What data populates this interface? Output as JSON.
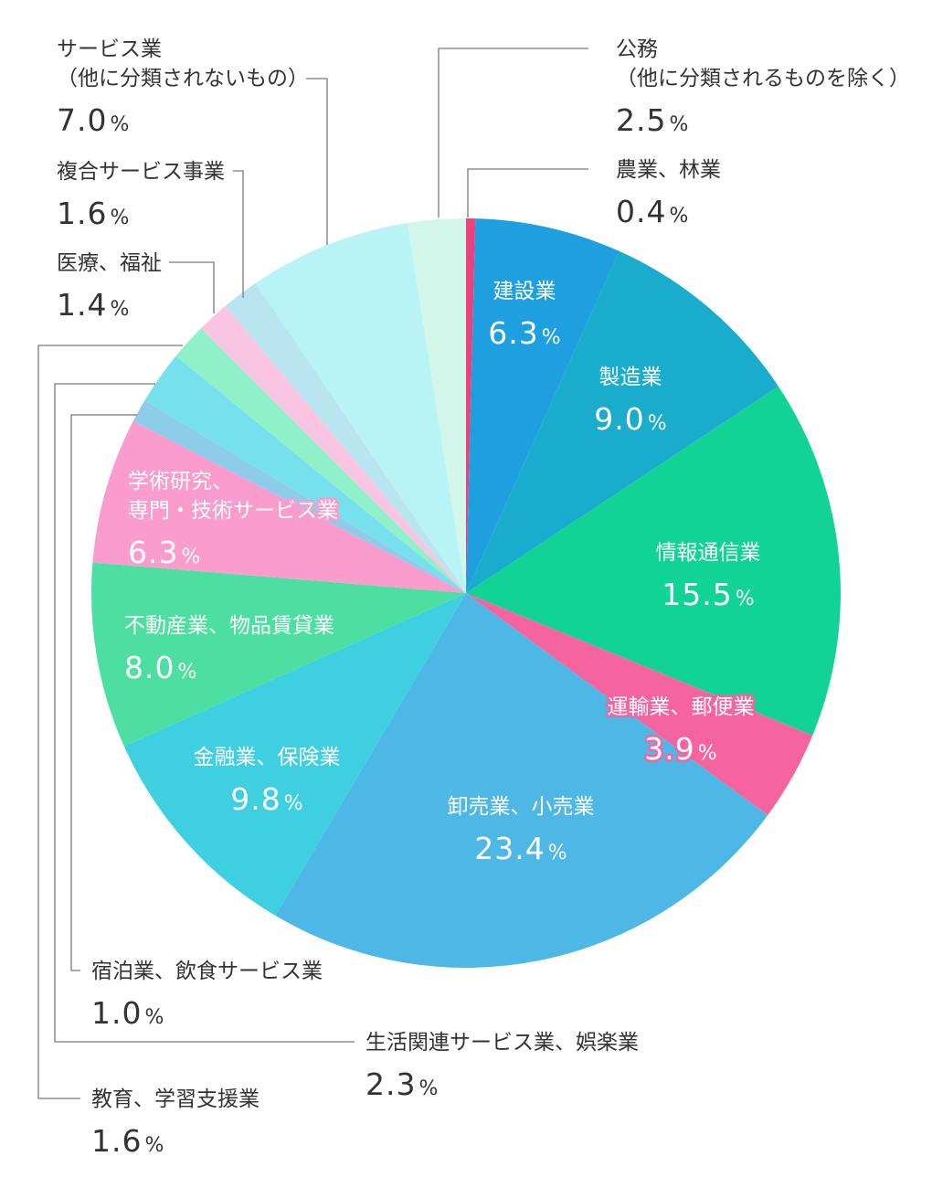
{
  "chart_data": {
    "type": "pie",
    "unit": "%",
    "slices": [
      {
        "name": "農業、林業",
        "value": 0.4,
        "color": "#e8437e"
      },
      {
        "name": "建設業",
        "value": 6.3,
        "color": "#1d9fe0"
      },
      {
        "name": "製造業",
        "value": 9.0,
        "color": "#1aaccc"
      },
      {
        "name": "情報通信業",
        "value": 15.5,
        "color": "#12d396"
      },
      {
        "name": "運輸業、郵便業",
        "value": 3.9,
        "color": "#f5649f"
      },
      {
        "name": "卸売業、小売業",
        "value": 23.4,
        "color": "#4db8e6"
      },
      {
        "name": "金融業、保険業",
        "value": 9.8,
        "color": "#3ecfe0"
      },
      {
        "name": "不動産業、物品賃貸業",
        "value": 8.0,
        "color": "#4ddfa2"
      },
      {
        "name": "学術研究、専門・技術サービス業",
        "value": 6.3,
        "color": "#fa9ccd"
      },
      {
        "name": "宿泊業、飲食サービス業",
        "value": 1.0,
        "color": "#8dcdea"
      },
      {
        "name": "生活関連サービス業、娯楽業",
        "value": 2.3,
        "color": "#76e0ec"
      },
      {
        "name": "教育、学習支援業",
        "value": 1.6,
        "color": "#8ff0c9"
      },
      {
        "name": "医療、福祉",
        "value": 1.4,
        "color": "#fbc4e2"
      },
      {
        "name": "複合サービス事業",
        "value": 1.6,
        "color": "#b9e5f0"
      },
      {
        "name": "サービス業（他に分類されないもの）",
        "value": 7.0,
        "color": "#b8f4f6"
      },
      {
        "name": "公務（他に分類されるものを除く）",
        "value": 2.5,
        "color": "#d2f7ea"
      }
    ],
    "labels": [
      {
        "lines": [
          "建設業"
        ],
        "value": "6.3",
        "pct": "%"
      },
      {
        "lines": [
          "製造業"
        ],
        "value": "9.0",
        "pct": "%"
      },
      {
        "lines": [
          "情報通信業"
        ],
        "value": "15.5",
        "pct": "%"
      },
      {
        "lines": [
          "運輸業、郵便業"
        ],
        "value": "3.9",
        "pct": "%"
      },
      {
        "lines": [
          "卸売業、小売業"
        ],
        "value": "23.4",
        "pct": "%"
      },
      {
        "lines": [
          "金融業、保険業"
        ],
        "value": "9.8",
        "pct": "%"
      },
      {
        "lines": [
          "不動産業、物品賃貸業"
        ],
        "value": "8.0",
        "pct": "%"
      },
      {
        "lines": [
          "学術研究、",
          "専門・技術サービス業"
        ],
        "value": "6.3",
        "pct": "%"
      },
      {
        "lines": [
          "公務",
          "（他に分類されるものを除く）"
        ],
        "value": "2.5",
        "pct": "%"
      },
      {
        "lines": [
          "農業、林業"
        ],
        "value": "0.4",
        "pct": "%"
      },
      {
        "lines": [
          "サービス業",
          "（他に分類されないもの）"
        ],
        "value": "7.0",
        "pct": "%"
      },
      {
        "lines": [
          "複合サービス事業"
        ],
        "value": "1.6",
        "pct": "%"
      },
      {
        "lines": [
          "医療、福祉"
        ],
        "value": "1.4",
        "pct": "%"
      },
      {
        "lines": [
          "宿泊業、飲食サービス業"
        ],
        "value": "1.0",
        "pct": "%"
      },
      {
        "lines": [
          "生活関連サービス業、娯楽業"
        ],
        "value": "2.3",
        "pct": "%"
      },
      {
        "lines": [
          "教育、学習支援業"
        ],
        "value": "1.6",
        "pct": "%"
      }
    ]
  }
}
